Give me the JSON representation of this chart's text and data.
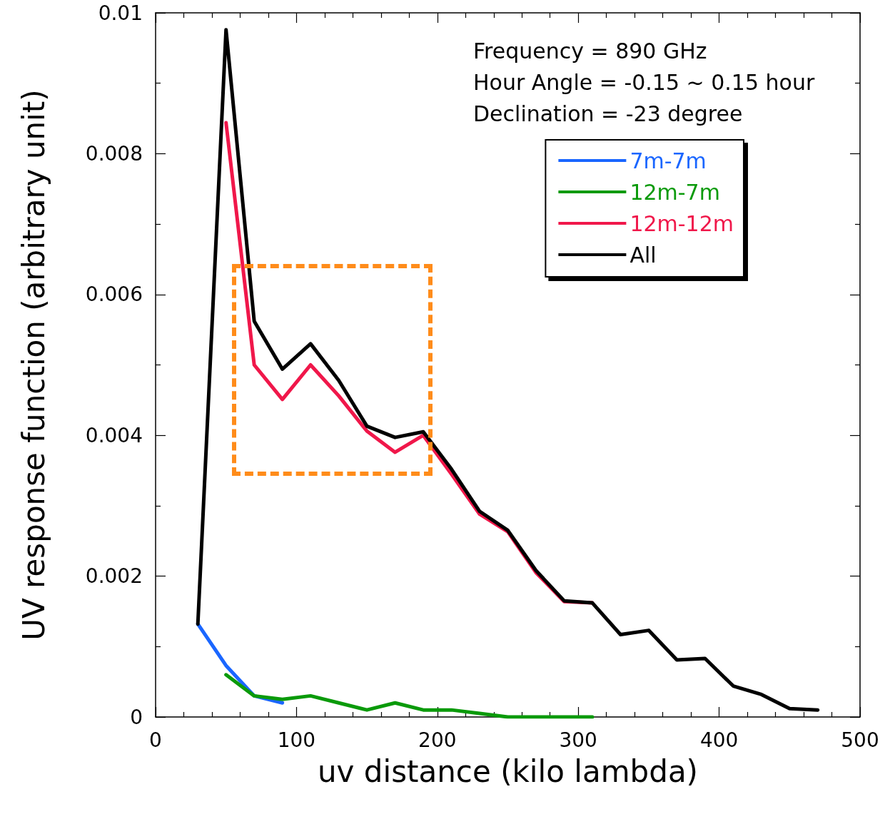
{
  "chart_data": {
    "type": "line",
    "xlabel": "uv distance (kilo lambda)",
    "ylabel": "UV response function (arbitrary unit)",
    "annotations": [
      "Frequency = 890 GHz",
      "Hour Angle = -0.15 ~ 0.15 hour",
      "Declination = -23 degree"
    ],
    "xlim": [
      0,
      500
    ],
    "xticks": [
      0,
      100,
      200,
      300,
      400,
      500
    ],
    "ylim": [
      0,
      0.01
    ],
    "yticks": [
      0,
      0.002,
      0.004,
      0.006,
      0.008,
      0.01
    ],
    "grid": false,
    "legend": "top right",
    "marker": "none",
    "line_style": "solid",
    "series": [
      {
        "name": "7m-7m",
        "color": "#1a66ff",
        "x": [
          30,
          50,
          70,
          90
        ],
        "values": [
          0.00132,
          0.00073,
          0.0003,
          0.0002
        ]
      },
      {
        "name": "12m-7m",
        "color": "#0a9a0a",
        "x": [
          50,
          70,
          90,
          110,
          130,
          150,
          170,
          190,
          210,
          230,
          250,
          270,
          290,
          310
        ],
        "values": [
          0.0006,
          0.0003,
          0.00025,
          0.0003,
          0.0002,
          0.0001,
          0.0002,
          0.0001,
          0.0001,
          5e-05,
          0,
          0,
          0,
          0
        ]
      },
      {
        "name": "12m-12m",
        "color": "#f0174a",
        "x": [
          50,
          70,
          90,
          110,
          130,
          150,
          170,
          190,
          210,
          230,
          250,
          270,
          290,
          310
        ],
        "values": [
          0.00844,
          0.005,
          0.00451,
          0.005,
          0.00456,
          0.00406,
          0.00376,
          0.004,
          0.00345,
          0.00288,
          0.00263,
          0.00205,
          0.00164,
          0.00162
        ]
      },
      {
        "name": "All",
        "color": "#000000",
        "x": [
          30,
          50,
          70,
          90,
          110,
          130,
          150,
          170,
          190,
          210,
          230,
          250,
          270,
          290,
          310,
          330,
          350,
          370,
          390,
          410,
          430,
          450,
          470
        ],
        "values": [
          0.00132,
          0.00976,
          0.00562,
          0.00494,
          0.0053,
          0.00478,
          0.00413,
          0.00397,
          0.00405,
          0.00352,
          0.00292,
          0.00265,
          0.00208,
          0.00165,
          0.00162,
          0.00117,
          0.00123,
          0.00081,
          0.00083,
          0.00044,
          0.00032,
          0.00012,
          0.0001
        ]
      }
    ]
  }
}
